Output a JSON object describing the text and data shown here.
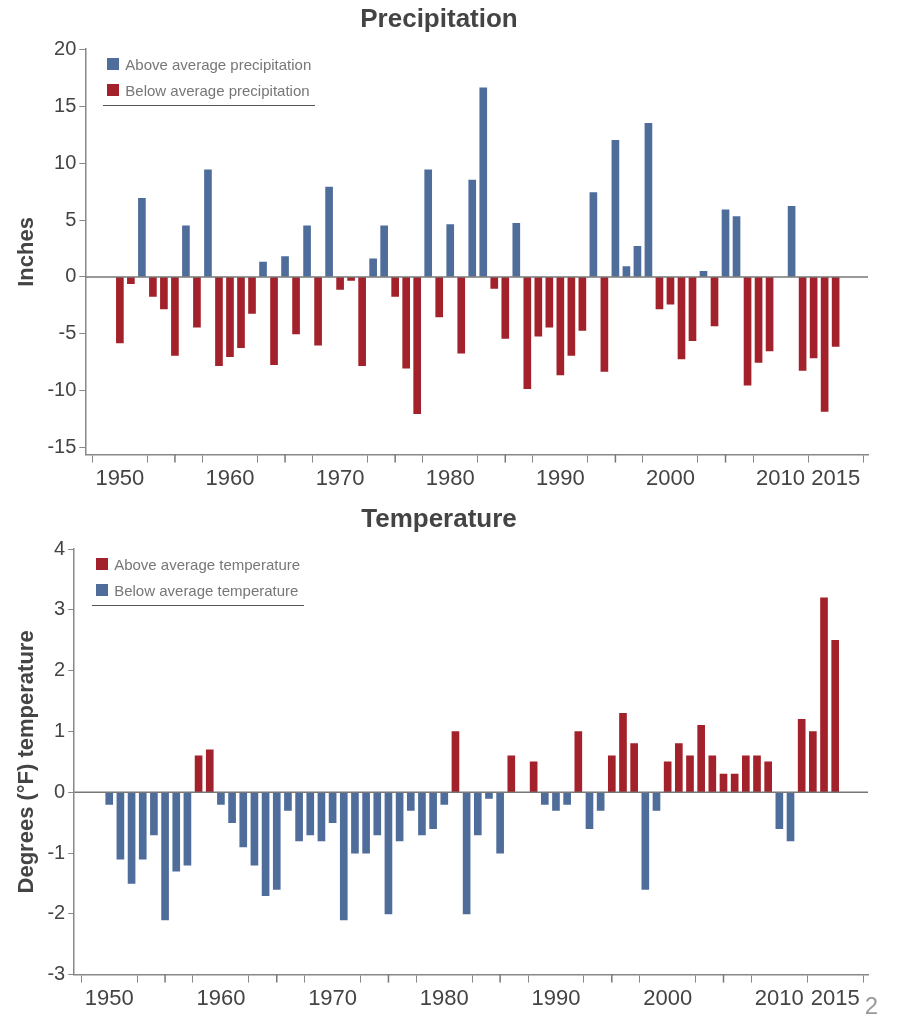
{
  "chart_data": [
    {
      "type": "bar",
      "title": "Precipitation",
      "ylabel": "Inches",
      "legend": "top left",
      "x": [
        1950,
        1951,
        1952,
        1953,
        1954,
        1955,
        1956,
        1957,
        1958,
        1959,
        1960,
        1961,
        1962,
        1963,
        1964,
        1965,
        1966,
        1967,
        1968,
        1969,
        1970,
        1971,
        1972,
        1973,
        1974,
        1975,
        1976,
        1977,
        1978,
        1979,
        1980,
        1981,
        1982,
        1983,
        1984,
        1985,
        1986,
        1987,
        1988,
        1989,
        1990,
        1991,
        1992,
        1993,
        1994,
        1995,
        1996,
        1997,
        1998,
        1999,
        2000,
        2001,
        2002,
        2003,
        2004,
        2005,
        2006,
        2007,
        2008,
        2009,
        2010,
        2011,
        2012,
        2013,
        2014,
        2015
      ],
      "series": [
        {
          "name": "Above average precipitation",
          "color": "#4f6d9b",
          "values": [
            null,
            null,
            6.9,
            null,
            null,
            null,
            4.5,
            null,
            9.4,
            null,
            null,
            null,
            null,
            1.3,
            null,
            1.8,
            null,
            4.5,
            null,
            7.9,
            null,
            null,
            null,
            1.6,
            4.5,
            null,
            null,
            null,
            9.4,
            null,
            4.6,
            null,
            8.5,
            16.6,
            null,
            null,
            4.7,
            null,
            null,
            null,
            null,
            null,
            null,
            7.4,
            null,
            12.0,
            0.9,
            2.7,
            13.5,
            null,
            null,
            null,
            null,
            0.5,
            null,
            5.9,
            5.3,
            null,
            null,
            null,
            null,
            6.2,
            null,
            null,
            null,
            null
          ]
        },
        {
          "name": "Below average precipitation",
          "color": "#a3212a",
          "values": [
            -5.8,
            -0.6,
            null,
            -1.7,
            -2.8,
            -6.9,
            null,
            -4.4,
            null,
            -7.8,
            -7.0,
            -6.2,
            -3.2,
            null,
            -7.7,
            null,
            -5.0,
            null,
            -6.0,
            null,
            -1.1,
            -0.3,
            -7.8,
            null,
            null,
            -1.7,
            -8.0,
            -12.0,
            null,
            -3.5,
            null,
            -6.7,
            null,
            null,
            -1.0,
            -5.4,
            null,
            -9.8,
            -5.2,
            -4.4,
            -8.6,
            -6.9,
            -4.7,
            null,
            -8.3,
            null,
            null,
            null,
            null,
            -2.8,
            -2.4,
            -7.2,
            -5.6,
            null,
            -4.3,
            null,
            null,
            -9.5,
            -7.5,
            -6.5,
            null,
            null,
            -8.2,
            -7.1,
            -11.8,
            -6.1
          ]
        }
      ],
      "xlim": [
        1949.4,
        2015.4
      ],
      "xticks": [
        1950,
        {
          "value": 1955,
          "label": null
        },
        1960,
        {
          "value": 1965,
          "label": null
        },
        1970,
        {
          "value": 1975,
          "label": null
        },
        1980,
        {
          "value": 1985,
          "label": null
        },
        1990,
        {
          "value": 1995,
          "label": null
        },
        2000,
        {
          "value": 2005,
          "label": null
        },
        2010,
        2015
      ],
      "ylim": [
        -15.6,
        20
      ],
      "yticks": [
        -15,
        -10,
        -5,
        0,
        5,
        10,
        15,
        20
      ]
    },
    {
      "type": "bar",
      "title": "Temperature",
      "ylabel": "Degrees (°F) temperature",
      "legend": "top left",
      "x": [
        1950,
        1951,
        1952,
        1953,
        1954,
        1955,
        1956,
        1957,
        1958,
        1959,
        1960,
        1961,
        1962,
        1963,
        1964,
        1965,
        1966,
        1967,
        1968,
        1969,
        1970,
        1971,
        1972,
        1973,
        1974,
        1975,
        1976,
        1977,
        1978,
        1979,
        1980,
        1981,
        1982,
        1983,
        1984,
        1985,
        1986,
        1987,
        1988,
        1989,
        1990,
        1991,
        1992,
        1993,
        1994,
        1995,
        1996,
        1997,
        1998,
        1999,
        2000,
        2001,
        2002,
        2003,
        2004,
        2005,
        2006,
        2007,
        2008,
        2009,
        2010,
        2011,
        2012,
        2013,
        2014,
        2015
      ],
      "series": [
        {
          "name": "Above average temperature",
          "color": "#a3212a",
          "values": [
            null,
            null,
            null,
            null,
            null,
            null,
            null,
            null,
            0.6,
            0.7,
            null,
            null,
            null,
            null,
            null,
            null,
            null,
            null,
            null,
            null,
            null,
            null,
            null,
            null,
            null,
            null,
            null,
            null,
            null,
            null,
            null,
            1.0,
            null,
            null,
            null,
            null,
            0.6,
            null,
            0.5,
            null,
            null,
            null,
            1.0,
            null,
            null,
            0.6,
            1.3,
            0.8,
            null,
            null,
            0.5,
            0.8,
            0.6,
            1.1,
            0.6,
            0.3,
            0.3,
            0.6,
            0.6,
            0.5,
            null,
            null,
            1.2,
            1.0,
            3.2,
            2.5
          ]
        },
        {
          "name": "Below average temperature",
          "color": "#4f6d9b",
          "values": [
            -0.2,
            -1.1,
            -1.5,
            -1.1,
            -0.7,
            -2.1,
            -1.3,
            -1.2,
            null,
            null,
            -0.2,
            -0.5,
            -0.9,
            -1.2,
            -1.7,
            -1.6,
            -0.3,
            -0.8,
            -0.7,
            -0.8,
            -0.5,
            -2.1,
            -1.0,
            -1.0,
            -0.7,
            -2.0,
            -0.8,
            -0.3,
            -0.7,
            -0.6,
            -0.2,
            null,
            -2.0,
            -0.7,
            -0.1,
            -1.0,
            null,
            null,
            null,
            -0.2,
            -0.3,
            -0.2,
            null,
            -0.6,
            -0.3,
            null,
            null,
            null,
            -1.6,
            -0.3,
            null,
            null,
            null,
            null,
            null,
            null,
            null,
            null,
            null,
            null,
            -0.6,
            -0.8,
            null,
            null,
            null,
            null
          ]
        }
      ],
      "xlim": [
        1949.4,
        2015.4
      ],
      "xticks": [
        1950,
        {
          "value": 1955,
          "label": null
        },
        1960,
        {
          "value": 1965,
          "label": null
        },
        1970,
        {
          "value": 1975,
          "label": null
        },
        1980,
        {
          "value": 1985,
          "label": null
        },
        1990,
        {
          "value": 1995,
          "label": null
        },
        2000,
        {
          "value": 2005,
          "label": null
        },
        2010,
        2015
      ],
      "ylim": [
        -3,
        4
      ],
      "yticks": [
        -3,
        -2,
        -1,
        0,
        1,
        2,
        3,
        4
      ],
      "annotations": [
        "2"
      ]
    }
  ]
}
